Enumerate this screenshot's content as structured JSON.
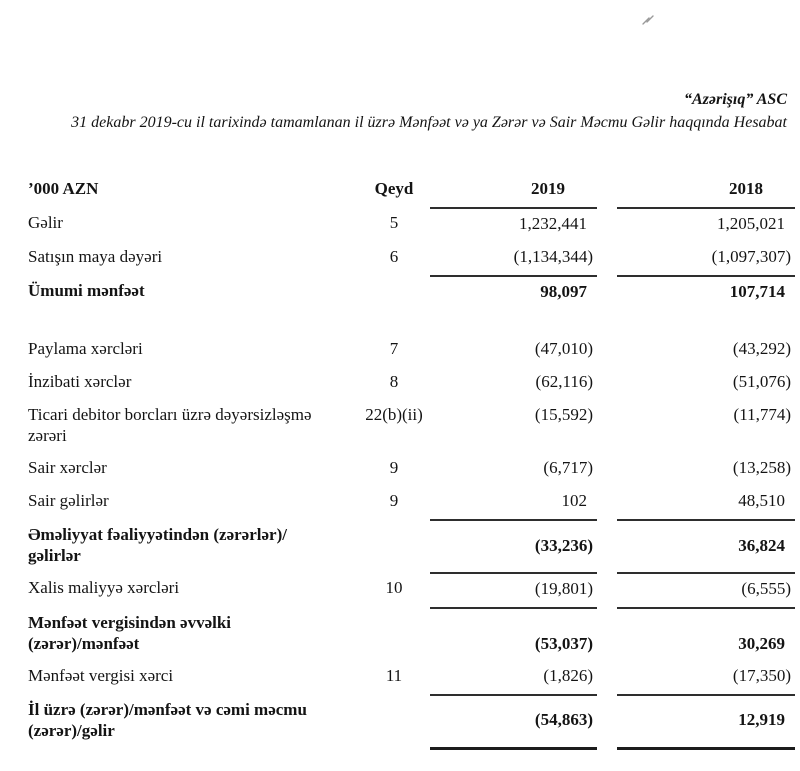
{
  "header": {
    "company": "“Azərişıq” ASC",
    "report_title": "31 dekabr 2019-cu il tarixində tamamlanan il üzrə Mənfəət və ya Zərər və Sair Məcmu Gəlir haqqında Hesabat"
  },
  "table": {
    "columns": [
      "’000 AZN",
      "Qeyd",
      "2019",
      "2018"
    ],
    "rows": [
      {
        "label": "Gəlir",
        "note": "5",
        "v2019": "1,232,441",
        "v2018": "1,205,021"
      },
      {
        "label": "Satışın maya dəyəri",
        "note": "6",
        "v2019": "(1,134,344)",
        "v2018": "(1,097,307)",
        "line_below": true
      },
      {
        "label": "Ümumi mənfəət",
        "note": "",
        "v2019": "98,097",
        "v2018": "107,714",
        "bold": true,
        "spacer_after": true
      },
      {
        "label": "Paylama xərcləri",
        "note": "7",
        "v2019": "(47,010)",
        "v2018": "(43,292)"
      },
      {
        "label": "İnzibati xərclər",
        "note": "8",
        "v2019": "(62,116)",
        "v2018": "(51,076)"
      },
      {
        "label": "Ticari debitor borcları üzrə dəyərsizləşmə\nzərəri",
        "note": "22(b)(ii)",
        "v2019": "(15,592)",
        "v2018": "(11,774)",
        "two_line": true
      },
      {
        "label": "Sair xərclər",
        "note": "9",
        "v2019": "(6,717)",
        "v2018": "(13,258)"
      },
      {
        "label": "Sair gəlirlər",
        "note": "9",
        "v2019": "102",
        "v2018": "48,510",
        "line_below": true
      },
      {
        "label": "Əməliyyat fəaliyyətindən (zərərlər)/\ngəlirlər",
        "note": "",
        "v2019": "(33,236)",
        "v2018": "36,824",
        "bold": true,
        "line_below": true,
        "valign": "middle",
        "two_line": true
      },
      {
        "label": "Xalis maliyyə xərcləri",
        "note": "10",
        "v2019": "(19,801)",
        "v2018": "(6,555)",
        "line_below": true
      },
      {
        "label": "Mənfəət vergisindən əvvəlki\n(zərər)/mənfəət",
        "note": "",
        "v2019": "(53,037)",
        "v2018": "30,269",
        "bold": true,
        "valign": "bottom",
        "two_line": true
      },
      {
        "label": "Mənfəət vergisi xərci",
        "note": "11",
        "v2019": "(1,826)",
        "v2018": "(17,350)",
        "line_below": true
      },
      {
        "label": "İl üzrə (zərər)/mənfəət və cəmi məcmu\n(zərər)/gəlir",
        "note": "",
        "v2019": "(54,863)",
        "v2018": "12,919",
        "bold": true,
        "thick_line_below": true,
        "valign": "middle",
        "two_line": true
      }
    ]
  },
  "colors": {
    "text": "#141414",
    "rule_line": "#2e2e2e",
    "final_rule_line": "#1c1c1c"
  }
}
